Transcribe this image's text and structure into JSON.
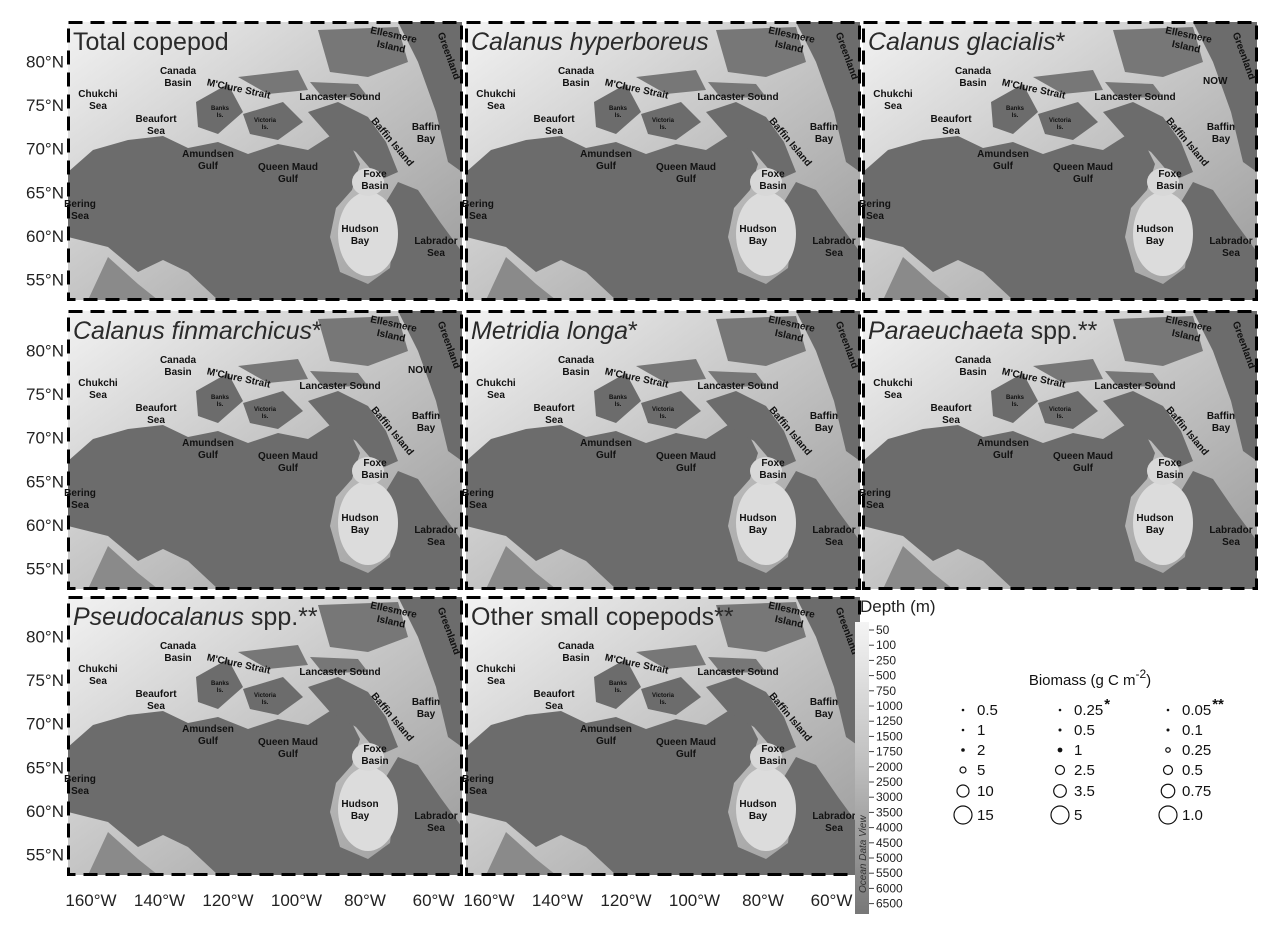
{
  "lat_labels": [
    "80°N",
    "75°N",
    "70°N",
    "65°N",
    "60°N",
    "55°N"
  ],
  "lon_labels": [
    "160°W",
    "140°W",
    "120°W",
    "100°W",
    "80°W",
    "60°W"
  ],
  "panels": [
    {
      "title": [
        {
          "text": "Total copepod",
          "italic": false
        }
      ]
    },
    {
      "title": [
        {
          "text": "Calanus hyperboreus",
          "italic": true
        }
      ]
    },
    {
      "title": [
        {
          "text": "Calanus glacialis",
          "italic": true
        },
        {
          "text": "*",
          "italic": false
        }
      ],
      "extra_labels": [
        "NOW"
      ]
    },
    {
      "title": [
        {
          "text": "Calanus finmarchicus",
          "italic": true
        },
        {
          "text": "*",
          "italic": false
        }
      ],
      "extra_labels": [
        "NOW"
      ]
    },
    {
      "title": [
        {
          "text": "Metridia longa",
          "italic": true
        },
        {
          "text": "*",
          "italic": false
        }
      ]
    },
    {
      "title": [
        {
          "text": "Paraeuchaeta",
          "italic": true
        },
        {
          "text": " spp.**",
          "italic": false
        }
      ]
    },
    {
      "title": [
        {
          "text": "Pseudocalanus",
          "italic": true
        },
        {
          "text": " spp.**",
          "italic": false
        }
      ]
    },
    {
      "title": [
        {
          "text": "Other small copepods**",
          "italic": false
        }
      ]
    }
  ],
  "place_labels": [
    {
      "lines": [
        "Chukchi",
        "Sea"
      ]
    },
    {
      "lines": [
        "Canada",
        "Basin"
      ]
    },
    {
      "lines": [
        "Beaufort",
        "Sea"
      ]
    },
    {
      "lines": [
        "Banks",
        "Is."
      ]
    },
    {
      "lines": [
        "Victoria",
        "Is."
      ]
    },
    {
      "lines": [
        "M'Clure Strait"
      ]
    },
    {
      "lines": [
        "Amundsen",
        "Gulf"
      ]
    },
    {
      "lines": [
        "Queen Maud",
        "Gulf"
      ]
    },
    {
      "lines": [
        "Lancaster Sound"
      ]
    },
    {
      "lines": [
        "Ellesmere",
        "Island"
      ]
    },
    {
      "lines": [
        "Greenland"
      ]
    },
    {
      "lines": [
        "Baffin",
        "Bay"
      ]
    },
    {
      "lines": [
        "Baffin Island"
      ]
    },
    {
      "lines": [
        "Foxe",
        "Basin"
      ]
    },
    {
      "lines": [
        "Bering",
        "Sea"
      ]
    },
    {
      "lines": [
        "Labrador",
        "Sea"
      ]
    },
    {
      "lines": [
        "Hudson",
        "Bay"
      ]
    }
  ],
  "depth_legend": {
    "title": "Depth (m)",
    "credit": "Ocean Data View",
    "ticks": [
      50,
      100,
      250,
      500,
      750,
      1000,
      1250,
      1500,
      1750,
      2000,
      2500,
      3000,
      3500,
      4000,
      4500,
      5000,
      5500,
      6000,
      6500
    ]
  },
  "biomass_legend": {
    "title": "Biomass (g C m",
    "title_sup": "-2",
    "title_end": ")",
    "columns": [
      {
        "values": [
          0.5,
          1,
          2,
          5,
          10,
          15
        ]
      },
      {
        "marker": "*",
        "values": [
          0.25,
          0.5,
          1,
          2.5,
          3.5,
          5
        ]
      },
      {
        "marker": "**",
        "values": [
          0.05,
          0.1,
          0.25,
          0.5,
          0.75,
          {
            "value": 1,
            "label": "1.0"
          }
        ]
      }
    ]
  }
}
